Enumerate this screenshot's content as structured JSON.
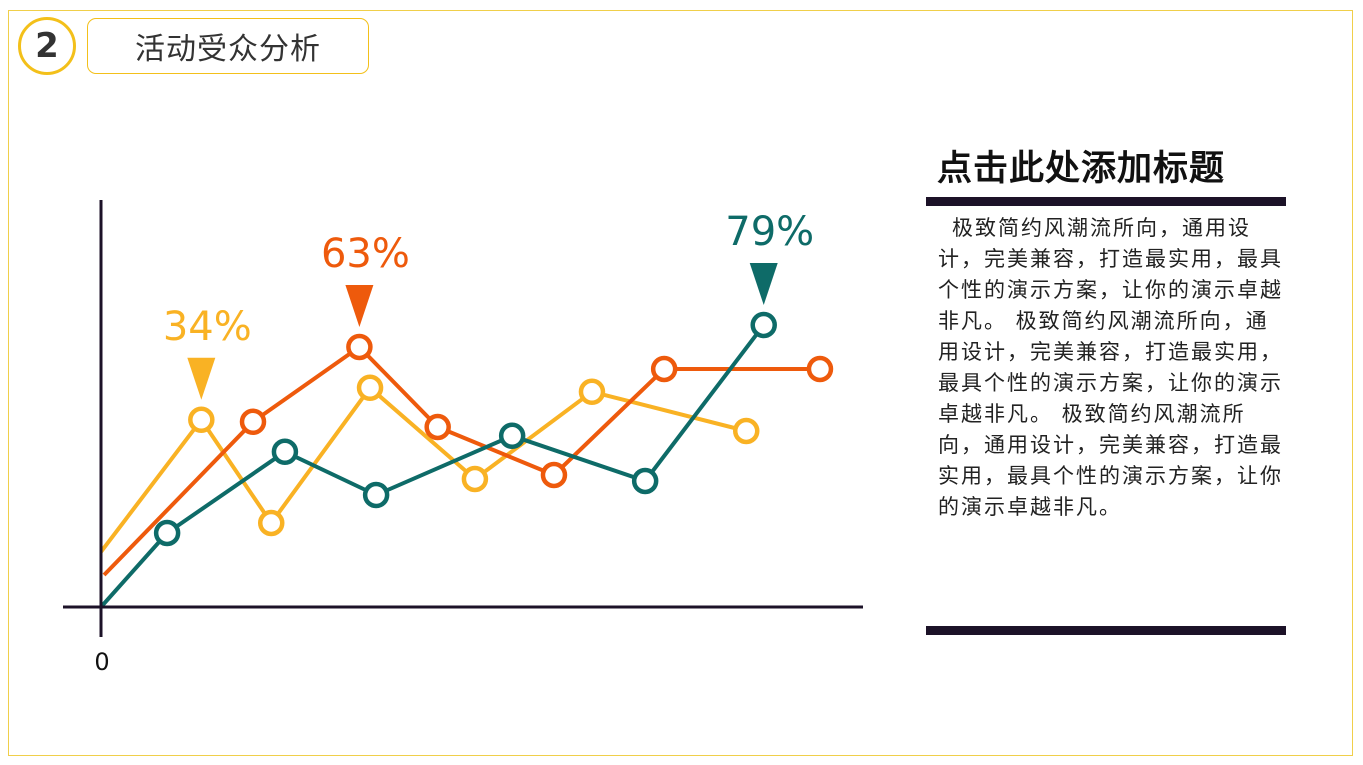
{
  "header": {
    "section_number": "2",
    "section_title": "活动受众分析"
  },
  "side_panel": {
    "title": "点击此处添加标题",
    "body": "极致简约风潮流所向，通用设计，完美兼容，打造最实用，最具个性的演示方案，让你的演示卓越非凡。 极致简约风潮流所向，通用设计，完美兼容，打造最实用，最具个性的演示方案，让你的演示卓越非凡。 极致简约风潮流所向，通用设计，完美兼容，打造最实用，最具个性的演示方案，让你的演示卓越非凡。"
  },
  "colors": {
    "accent": "#f3c01a",
    "teal": "#0e6b68",
    "yellow": "#f9b224",
    "orange": "#ee5a0c",
    "dark": "#1c1228"
  },
  "chart_data": {
    "type": "line",
    "title": "",
    "xlabel": "",
    "ylabel": "",
    "xlim": [
      0,
      100
    ],
    "ylim": [
      0,
      100
    ],
    "origin_label": "0",
    "grid": false,
    "series": [
      {
        "name": "yellow",
        "color": "#f9b224",
        "x": [
          0,
          13.2,
          22.4,
          35.4,
          49.2,
          64.6,
          84.9
        ],
        "y": [
          13.8,
          46.8,
          21,
          54.8,
          32,
          53.8,
          44
        ],
        "annotation": {
          "index": 1,
          "label": "34%"
        }
      },
      {
        "name": "orange",
        "color": "#ee5a0c",
        "x": [
          0.4,
          20,
          34,
          44.3,
          59.6,
          74.1,
          94.6
        ],
        "y": [
          8,
          46.3,
          65,
          45,
          33,
          59.5,
          59.5
        ],
        "annotation": {
          "index": 2,
          "label": "63%"
        }
      },
      {
        "name": "teal",
        "color": "#0e6b68",
        "x": [
          0,
          8.7,
          24.2,
          36.2,
          54.1,
          71.6,
          87.2
        ],
        "y": [
          0,
          18.5,
          38.8,
          28,
          42.8,
          31.5,
          70.5
        ],
        "annotation": {
          "index": 6,
          "label": "79%"
        }
      }
    ]
  }
}
